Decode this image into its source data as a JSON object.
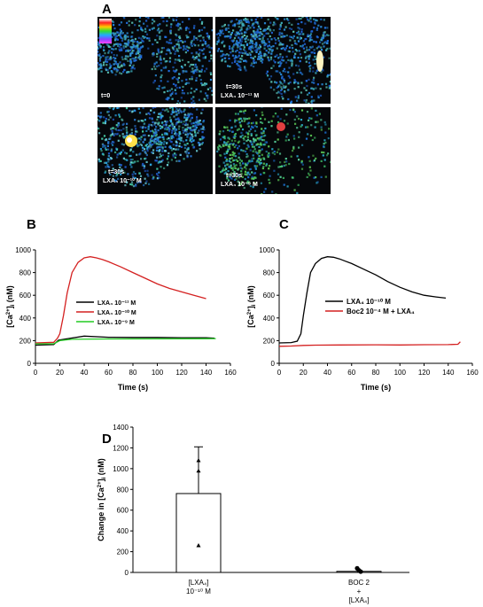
{
  "panel_letters": {
    "a": "A",
    "b": "B",
    "c": "C",
    "d": "D"
  },
  "micrographs": [
    {
      "time": "t=0",
      "treatment": ""
    },
    {
      "time": "t=30s",
      "treatment": "LXA₄ 10⁻¹¹ M"
    },
    {
      "time": "t=30s",
      "treatment": "LXA₄ 10⁻¹⁰ M"
    },
    {
      "time": "t=30s",
      "treatment": "LXA₄ 10⁻⁹ M"
    }
  ],
  "colors": {
    "black": "#000000",
    "red": "#d42020",
    "green": "#22cc22"
  },
  "chart_data": [
    {
      "type": "line",
      "panel": "B",
      "xlabel": "Time (s)",
      "ylabel": "[Ca²⁺]ᵢ (nM)",
      "xlim": [
        0,
        160
      ],
      "ylim": [
        0,
        1000
      ],
      "xticks": [
        0,
        20,
        40,
        60,
        80,
        100,
        120,
        140,
        160
      ],
      "yticks": [
        0,
        200,
        400,
        600,
        800,
        1000
      ],
      "legend": "center-left",
      "series": [
        {
          "name": "LXA₄ 10⁻¹¹ M",
          "color": "#000000",
          "x": [
            0,
            15,
            19,
            25,
            40,
            60,
            80,
            100,
            120,
            140,
            147
          ],
          "y": [
            160,
            165,
            205,
            215,
            240,
            230,
            228,
            228,
            226,
            225,
            222
          ]
        },
        {
          "name": "LXA₄ 10⁻¹⁰ M",
          "color": "#d42020",
          "x": [
            0,
            15,
            18,
            20,
            23,
            26,
            30,
            35,
            40,
            45,
            50,
            55,
            60,
            70,
            80,
            90,
            100,
            110,
            120,
            130,
            140
          ],
          "y": [
            180,
            185,
            220,
            260,
            420,
            620,
            800,
            890,
            930,
            940,
            930,
            915,
            895,
            850,
            800,
            750,
            700,
            660,
            630,
            600,
            570
          ]
        },
        {
          "name": "LXA₄ 10⁻⁹ M",
          "color": "#22cc22",
          "x": [
            0,
            15,
            20,
            30,
            60,
            100,
            140,
            148
          ],
          "y": [
            172,
            172,
            200,
            212,
            215,
            216,
            217,
            218
          ]
        }
      ]
    },
    {
      "type": "line",
      "panel": "C",
      "xlabel": "Time (s)",
      "ylabel": "[Ca²⁺]ᵢ (nM)",
      "xlim": [
        0,
        160
      ],
      "ylim": [
        0,
        1000
      ],
      "xticks": [
        0,
        20,
        40,
        60,
        80,
        100,
        120,
        140,
        160
      ],
      "yticks": [
        0,
        200,
        400,
        600,
        800,
        1000
      ],
      "legend": "center-right",
      "series": [
        {
          "name": "LXA₄ 10⁻¹⁰ M",
          "color": "#000000",
          "x": [
            0,
            10,
            15,
            18,
            20,
            23,
            26,
            30,
            35,
            40,
            45,
            50,
            55,
            60,
            70,
            80,
            90,
            100,
            110,
            120,
            130,
            138
          ],
          "y": [
            180,
            183,
            195,
            260,
            420,
            620,
            800,
            880,
            925,
            940,
            935,
            920,
            900,
            880,
            830,
            780,
            720,
            670,
            630,
            600,
            585,
            575
          ]
        },
        {
          "name": "Boc2 10⁻⁴ M + LXA₄",
          "color": "#d42020",
          "x": [
            0,
            10,
            20,
            30,
            50,
            80,
            100,
            120,
            140,
            148,
            150
          ],
          "y": [
            150,
            152,
            158,
            160,
            162,
            163,
            162,
            164,
            165,
            168,
            190
          ]
        }
      ]
    },
    {
      "type": "bar",
      "panel": "D",
      "categories": [
        "[LXA₄]\n10⁻¹⁰ M",
        "BOC 2\n+\n[LXA₄]"
      ],
      "values": [
        760,
        8
      ],
      "error_upper": [
        1210,
        0
      ],
      "individual_points": [
        {
          "category": 0,
          "marker": "triangle",
          "values": [
            1080,
            980,
            260
          ]
        },
        {
          "category": 1,
          "marker": "circle",
          "values": [
            40,
            20,
            8
          ]
        }
      ],
      "ylabel": "Change in [Ca²⁺]ᵢ (nM)",
      "ylim": [
        0,
        1400
      ],
      "yticks": [
        0,
        200,
        400,
        600,
        800,
        1000,
        1200,
        1400
      ]
    }
  ]
}
